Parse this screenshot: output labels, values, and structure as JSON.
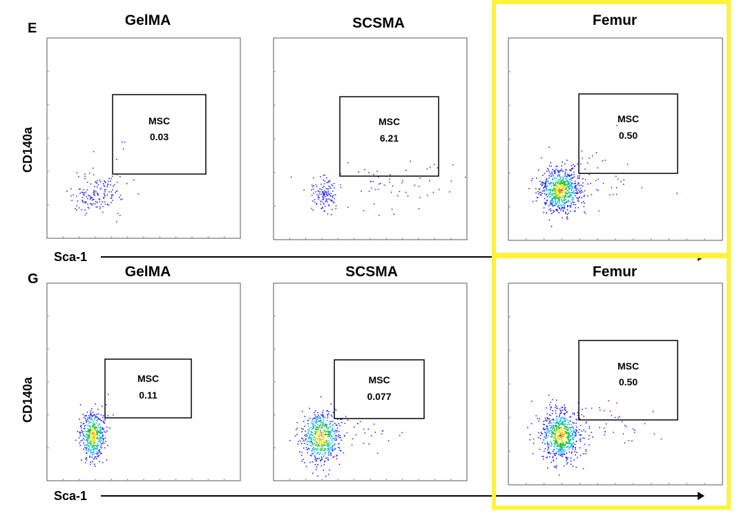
{
  "panels": [
    {
      "letter": "E",
      "ylabel": "CD140a",
      "xlabel": "Sca-1",
      "plots": [
        {
          "title": "GelMA",
          "gate_label": "MSC",
          "gate_value": "0.03"
        },
        {
          "title": "SCSMA",
          "gate_label": "MSC",
          "gate_value": "6.21"
        },
        {
          "title": "Femur",
          "gate_label": "MSC",
          "gate_value": "0.50"
        }
      ]
    },
    {
      "letter": "G",
      "ylabel": "CD140a",
      "xlabel": "Sca-1",
      "plots": [
        {
          "title": "GelMA",
          "gate_label": "MSC",
          "gate_value": "0.11"
        },
        {
          "title": "SCSMA",
          "gate_label": "MSC",
          "gate_value": "0.077"
        },
        {
          "title": "Femur",
          "gate_label": "MSC",
          "gate_value": "0.50"
        }
      ]
    }
  ],
  "highlight_color": "#fff23a",
  "chart_data": [
    {
      "type": "scatter",
      "panel": "E",
      "title": "GelMA",
      "xlabel": "Sca-1",
      "ylabel": "CD140a",
      "gate": {
        "label": "MSC",
        "percent": 0.03
      }
    },
    {
      "type": "scatter",
      "panel": "E",
      "title": "SCSMA",
      "xlabel": "Sca-1",
      "ylabel": "CD140a",
      "gate": {
        "label": "MSC",
        "percent": 6.21
      }
    },
    {
      "type": "scatter",
      "panel": "E",
      "title": "Femur",
      "xlabel": "Sca-1",
      "ylabel": "CD140a",
      "gate": {
        "label": "MSC",
        "percent": 0.5
      }
    },
    {
      "type": "scatter",
      "panel": "G",
      "title": "GelMA",
      "xlabel": "Sca-1",
      "ylabel": "CD140a",
      "gate": {
        "label": "MSC",
        "percent": 0.11
      }
    },
    {
      "type": "scatter",
      "panel": "G",
      "title": "SCSMA",
      "xlabel": "Sca-1",
      "ylabel": "CD140a",
      "gate": {
        "label": "MSC",
        "percent": 0.077
      }
    },
    {
      "type": "scatter",
      "panel": "G",
      "title": "Femur",
      "xlabel": "Sca-1",
      "ylabel": "CD140a",
      "gate": {
        "label": "MSC",
        "percent": 0.5
      }
    }
  ]
}
